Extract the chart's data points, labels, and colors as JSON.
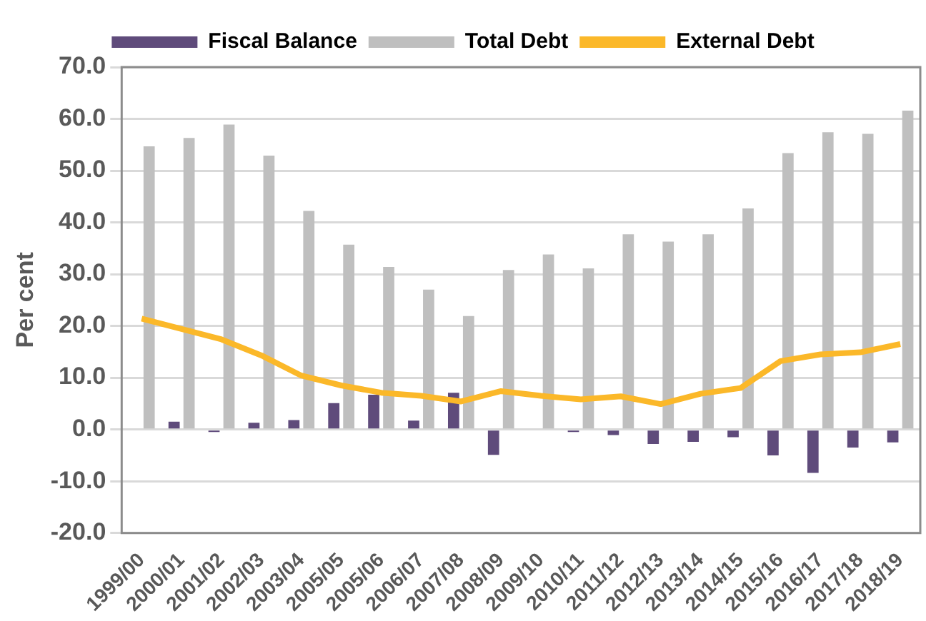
{
  "chart_data": {
    "type": "bar",
    "ylabel": "Per cent",
    "categories": [
      "1999/00",
      "2000/01",
      "2001/02",
      "2002/03",
      "2003/04",
      "2005/05",
      "2005/06",
      "2006/07",
      "2007/08",
      "2008/09",
      "2009/10",
      "2010/11",
      "2011/12",
      "2012/13",
      "2013/14",
      "2014/15",
      "2015/16",
      "2016/17",
      "2017/18",
      "2018/19"
    ],
    "series": [
      {
        "name": "Fiscal Balance",
        "color": "#5f4b7b",
        "values": [
          null,
          1.5,
          -0.5,
          1.3,
          1.8,
          5.1,
          6.7,
          1.7,
          7.1,
          -4.9,
          0,
          -0.5,
          -1.1,
          -2.8,
          -2.4,
          -1.5,
          -5.0,
          -8.4,
          -3.5,
          -2.5
        ]
      },
      {
        "name": "Total Debt",
        "color": "#bfbfbf",
        "values": [
          54.7,
          56.3,
          58.9,
          52.9,
          42.2,
          35.7,
          31.4,
          27.0,
          21.9,
          30.8,
          33.8,
          31.1,
          37.7,
          36.3,
          37.7,
          42.7,
          53.4,
          57.4,
          57.1,
          61.6
        ]
      },
      {
        "name": "External Debt",
        "type": "line",
        "color": "#fbb829",
        "values": [
          21.4,
          19.4,
          17.4,
          14.3,
          10.4,
          8.5,
          7.1,
          6.5,
          5.4,
          7.4,
          6.5,
          5.8,
          6.4,
          4.9,
          6.9,
          8.0,
          13.2,
          14.5,
          14.9,
          16.5
        ]
      }
    ],
    "ylim": [
      -20,
      70
    ],
    "yticks": [
      {
        "value": -20,
        "label": "-20.0"
      },
      {
        "value": -10,
        "label": "-10.0"
      },
      {
        "value": 0,
        "label": "0.0"
      },
      {
        "value": 10,
        "label": "10.0"
      },
      {
        "value": 20,
        "label": "20.0"
      },
      {
        "value": 30,
        "label": "30.0"
      },
      {
        "value": 40,
        "label": "40.0"
      },
      {
        "value": 50,
        "label": "50.0"
      },
      {
        "value": 60,
        "label": "60.0"
      },
      {
        "value": 70,
        "label": "70.0"
      }
    ],
    "grid": "y",
    "legend": "top",
    "marker": "none",
    "line_style": "solid"
  }
}
